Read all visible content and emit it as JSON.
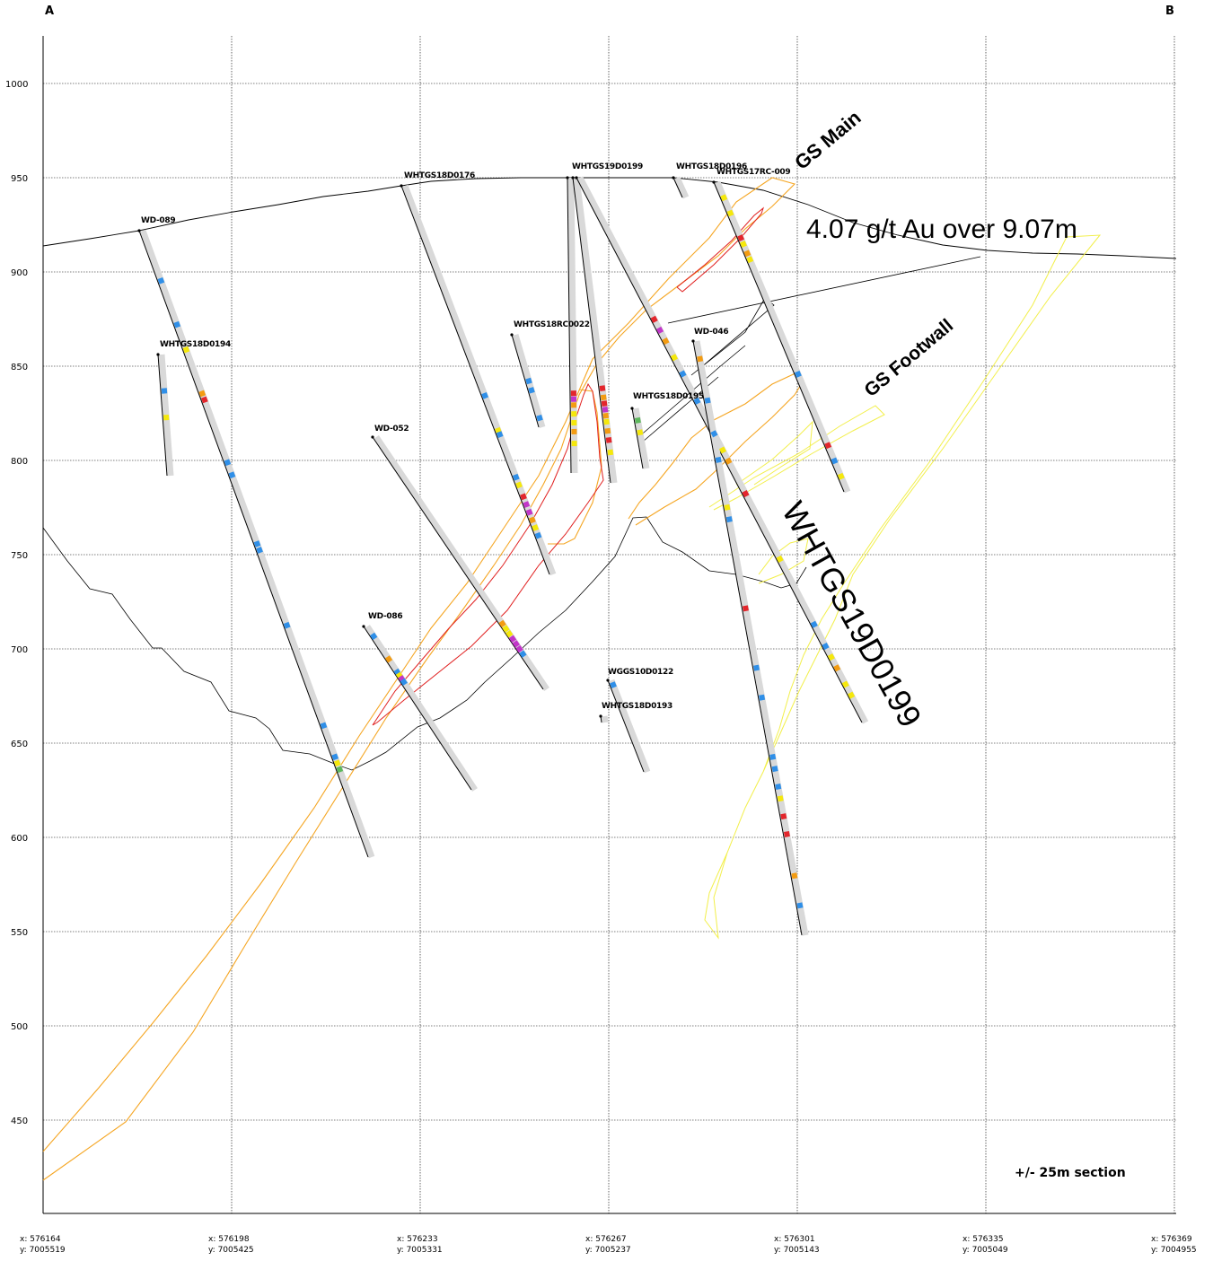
{
  "section": {
    "corner_left": "A",
    "corner_right": "B",
    "note": "+/- 25m section",
    "elevation_ticks": [
      "1000",
      "950",
      "900",
      "850",
      "800",
      "750",
      "700",
      "650",
      "600",
      "550",
      "500",
      "450"
    ],
    "easting_ticks": [
      {
        "x": "x: 576164",
        "y": "y: 7005519"
      },
      {
        "x": "x: 576198",
        "y": "y: 7005425"
      },
      {
        "x": "x: 576233",
        "y": "y: 7005331"
      },
      {
        "x": "x: 576267",
        "y": "y: 7005237"
      },
      {
        "x": "x: 576301",
        "y": "y: 7005143"
      },
      {
        "x": "x: 576335",
        "y": "y: 7005049"
      },
      {
        "x": "x: 576369",
        "y": "y: 7004955"
      }
    ]
  },
  "annotations": {
    "gs_main": "GS Main",
    "gs_footwall": "GS  Footwall",
    "intercept": "4.07 g/t Au over 9.07m",
    "featured_hole": "WHTGS19D0199"
  },
  "holes": [
    {
      "name": "WD-089"
    },
    {
      "name": "WHTGS18D0194"
    },
    {
      "name": "WHTGS18D0176"
    },
    {
      "name": "WD-052"
    },
    {
      "name": "WD-086"
    },
    {
      "name": "WHTGS18RC0022"
    },
    {
      "name": "WHTGS19D0199"
    },
    {
      "name": "WHTGS18D0196"
    },
    {
      "name": "WHTGS17RC-009"
    },
    {
      "name": "WD-046"
    },
    {
      "name": "WHTGS18D0195"
    },
    {
      "name": "WGGS10D0122"
    },
    {
      "name": "WHTGS18D0193"
    }
  ],
  "colors": {
    "grid": "#000000",
    "trace_shadow": "#d9d9d9",
    "orange_zone": "#f5a623",
    "red_zone": "#e02020",
    "yellow_zone": "#f2ef4a",
    "assay_blue": "#2f8fe8",
    "assay_yellow": "#f5e80c",
    "assay_orange": "#f39c12",
    "assay_red": "#e3262c",
    "assay_magenta": "#c236c9"
  }
}
